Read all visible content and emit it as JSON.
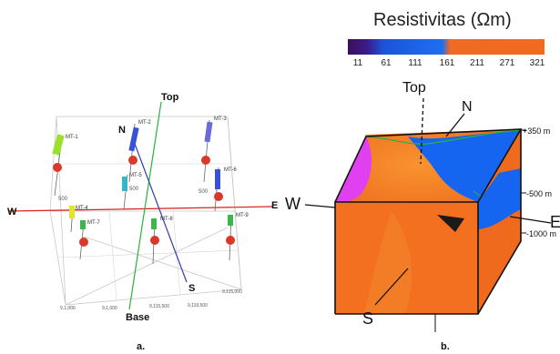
{
  "legend": {
    "title": "Resistivitas (Ωm)",
    "ticks": [
      "11",
      "61",
      "111",
      "161",
      "211",
      "271",
      "321"
    ],
    "colors": [
      "#3a0f5c",
      "#1a55d8",
      "#1f6ef0",
      "#ef6a22",
      "#f07a28",
      "#f4932e",
      "#f8a33a"
    ]
  },
  "panel_a": {
    "caption": "a.",
    "labels": {
      "top": "Top",
      "base": "Base",
      "north": "N",
      "south": "S",
      "west": "W",
      "east": "E"
    },
    "stations": [
      "MT-1",
      "MT-2",
      "MT-3",
      "MT-4",
      "MT-5",
      "MT-6",
      "MT-7",
      "MT-8",
      "MT-9"
    ],
    "depth_tick": "500",
    "axis_ticks": [
      "9,1,000",
      "9,1,000",
      "9,115,500",
      "9,119,500",
      "9,115,000"
    ]
  },
  "panel_b": {
    "caption": "b.",
    "labels": {
      "top": "Top",
      "north": "N",
      "south": "S",
      "west": "W",
      "east": "E"
    },
    "depths": [
      "+350 m",
      "-500 m",
      "-1000 m"
    ]
  },
  "colors": {
    "orange": "#f2701f",
    "blue": "#1565f0",
    "magenta": "#e040f0",
    "green_line": "#28b43c",
    "red_line": "#d8201c",
    "navy_line": "#3040a8"
  }
}
